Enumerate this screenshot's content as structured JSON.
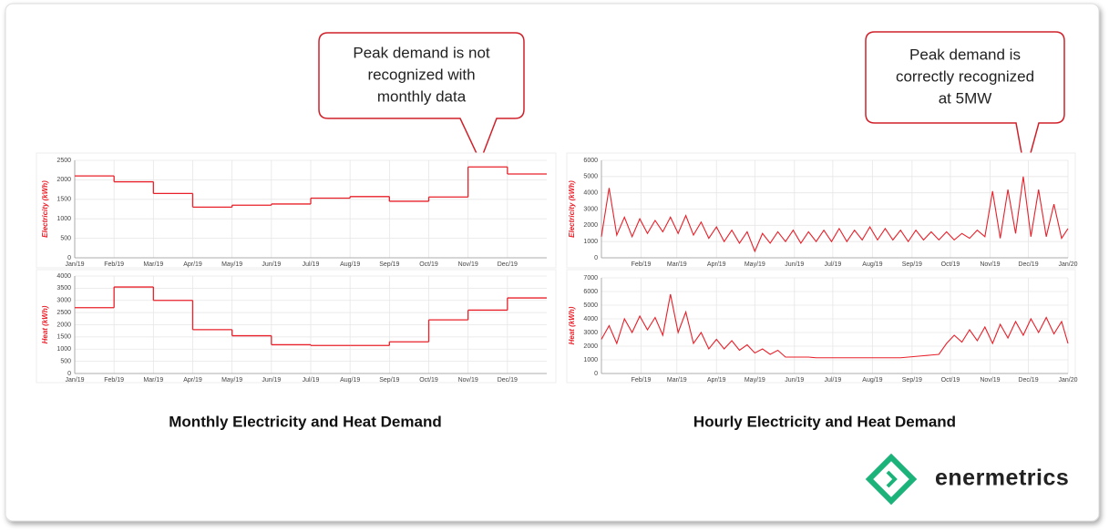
{
  "chart_data": [
    {
      "type": "step",
      "y_label": "Electricity (kWh)",
      "color": "#e8202a",
      "grid": true,
      "categories": [
        "Jan/19",
        "Feb/19",
        "Mar/19",
        "Apr/19",
        "May/19",
        "Jun/19",
        "Jul/19",
        "Aug/19",
        "Sep/19",
        "Oct/19",
        "Nov/19",
        "Dec/19"
      ],
      "values": [
        2100,
        1950,
        1650,
        1300,
        1350,
        1380,
        1530,
        1570,
        1450,
        1560,
        2330,
        2150
      ],
      "ylim": [
        0,
        2500
      ],
      "yticks": [
        0,
        500,
        1000,
        1500,
        2000,
        2500
      ],
      "annotation": [
        "Peak demand is not",
        "recognized with",
        "monthly data"
      ]
    },
    {
      "type": "step",
      "y_label": "Heat (kWh)",
      "color": "#e8202a",
      "grid": true,
      "categories": [
        "Jan/19",
        "Feb/19",
        "Mar/19",
        "Apr/19",
        "May/19",
        "Jun/19",
        "Jul/19",
        "Aug/19",
        "Sep/19",
        "Oct/19",
        "Nov/19",
        "Dec/19"
      ],
      "values": [
        2700,
        3550,
        3000,
        1800,
        1550,
        1180,
        1150,
        1150,
        1300,
        2200,
        2600,
        3100
      ],
      "ylim": [
        0,
        4000
      ],
      "yticks": [
        0,
        500,
        1000,
        1500,
        2000,
        2500,
        3000,
        3500,
        4000
      ]
    },
    {
      "type": "line",
      "y_label": "Electricity (kWh)",
      "color": "#e8202a",
      "grid": true,
      "x": [
        0,
        6,
        12,
        18,
        24,
        30,
        36,
        42,
        48,
        54,
        60,
        66,
        72,
        78,
        84,
        90,
        96,
        102,
        108,
        114,
        120,
        126,
        132,
        138,
        144,
        150,
        156,
        162,
        168,
        174,
        180,
        186,
        192,
        198,
        204,
        210,
        216,
        222,
        228,
        234,
        240,
        246,
        252,
        258,
        264,
        270,
        276,
        282,
        288,
        294,
        300,
        306,
        312,
        318,
        324,
        330,
        336,
        342,
        348,
        354,
        360,
        365
      ],
      "values": [
        1300,
        4300,
        1400,
        2500,
        1300,
        2400,
        1500,
        2300,
        1600,
        2500,
        1500,
        2600,
        1400,
        2200,
        1200,
        1900,
        1000,
        1700,
        900,
        1600,
        400,
        1500,
        900,
        1600,
        1000,
        1700,
        900,
        1600,
        1000,
        1700,
        1000,
        1800,
        1000,
        1700,
        1100,
        1900,
        1100,
        1800,
        1100,
        1700,
        1000,
        1700,
        1100,
        1600,
        1100,
        1600,
        1100,
        1500,
        1200,
        1700,
        1300,
        4100,
        1200,
        4200,
        1500,
        5000,
        1300,
        4200,
        1300,
        3300,
        1200,
        1800
      ],
      "xlim": [
        0,
        365
      ],
      "xticks": [
        {
          "value": 31,
          "label": "Feb/19"
        },
        {
          "value": 59,
          "label": "Mar/19"
        },
        {
          "value": 90,
          "label": "Apr/19"
        },
        {
          "value": 120,
          "label": "May/19"
        },
        {
          "value": 151,
          "label": "Jun/19"
        },
        {
          "value": 181,
          "label": "Jul/19"
        },
        {
          "value": 212,
          "label": "Aug/19"
        },
        {
          "value": 243,
          "label": "Sep/19"
        },
        {
          "value": 273,
          "label": "Oct/19"
        },
        {
          "value": 304,
          "label": "Nov/19"
        },
        {
          "value": 334,
          "label": "Dec/19"
        },
        {
          "value": 365,
          "label": "Jan/20"
        }
      ],
      "ylim": [
        0,
        6000
      ],
      "yticks": [
        0,
        1000,
        2000,
        3000,
        4000,
        5000,
        6000
      ],
      "annotation": [
        "Peak demand is",
        "correctly recognized",
        "at 5MW"
      ]
    },
    {
      "type": "line",
      "y_label": "Heat (kWh)",
      "color": "#e8202a",
      "grid": true,
      "x": [
        0,
        6,
        12,
        18,
        24,
        30,
        36,
        42,
        48,
        54,
        60,
        66,
        72,
        78,
        84,
        90,
        96,
        102,
        108,
        114,
        120,
        126,
        132,
        138,
        144,
        150,
        156,
        162,
        168,
        174,
        180,
        186,
        192,
        198,
        204,
        210,
        216,
        222,
        228,
        234,
        240,
        246,
        252,
        258,
        264,
        270,
        276,
        282,
        288,
        294,
        300,
        306,
        312,
        318,
        324,
        330,
        336,
        342,
        348,
        354,
        360,
        365
      ],
      "values": [
        2500,
        3500,
        2200,
        4000,
        3000,
        4200,
        3200,
        4100,
        2800,
        5800,
        3000,
        4500,
        2200,
        3000,
        1800,
        2500,
        1800,
        2400,
        1700,
        2100,
        1500,
        1800,
        1400,
        1700,
        1200,
        1200,
        1200,
        1200,
        1150,
        1150,
        1150,
        1150,
        1150,
        1150,
        1150,
        1150,
        1150,
        1150,
        1150,
        1150,
        1200,
        1250,
        1300,
        1350,
        1400,
        2200,
        2800,
        2300,
        3200,
        2400,
        3400,
        2200,
        3600,
        2600,
        3800,
        2800,
        4000,
        3000,
        4100,
        2900,
        3800,
        2200
      ],
      "xlim": [
        0,
        365
      ],
      "xticks": [
        {
          "value": 31,
          "label": "Feb/19"
        },
        {
          "value": 59,
          "label": "Mar/19"
        },
        {
          "value": 90,
          "label": "Apr/19"
        },
        {
          "value": 120,
          "label": "May/19"
        },
        {
          "value": 151,
          "label": "Jun/19"
        },
        {
          "value": 181,
          "label": "Jul/19"
        },
        {
          "value": 212,
          "label": "Aug/19"
        },
        {
          "value": 243,
          "label": "Sep/19"
        },
        {
          "value": 273,
          "label": "Oct/19"
        },
        {
          "value": 304,
          "label": "Nov/19"
        },
        {
          "value": 334,
          "label": "Dec/19"
        },
        {
          "value": 365,
          "label": "Jan/20"
        }
      ],
      "ylim": [
        0,
        7000
      ],
      "yticks": [
        0,
        1000,
        2000,
        3000,
        4000,
        5000,
        6000,
        7000
      ]
    }
  ],
  "captions": [
    "Monthly Electricity and Heat Demand",
    "Hourly Electricity and Heat Demand"
  ],
  "logo": "enermetrics"
}
